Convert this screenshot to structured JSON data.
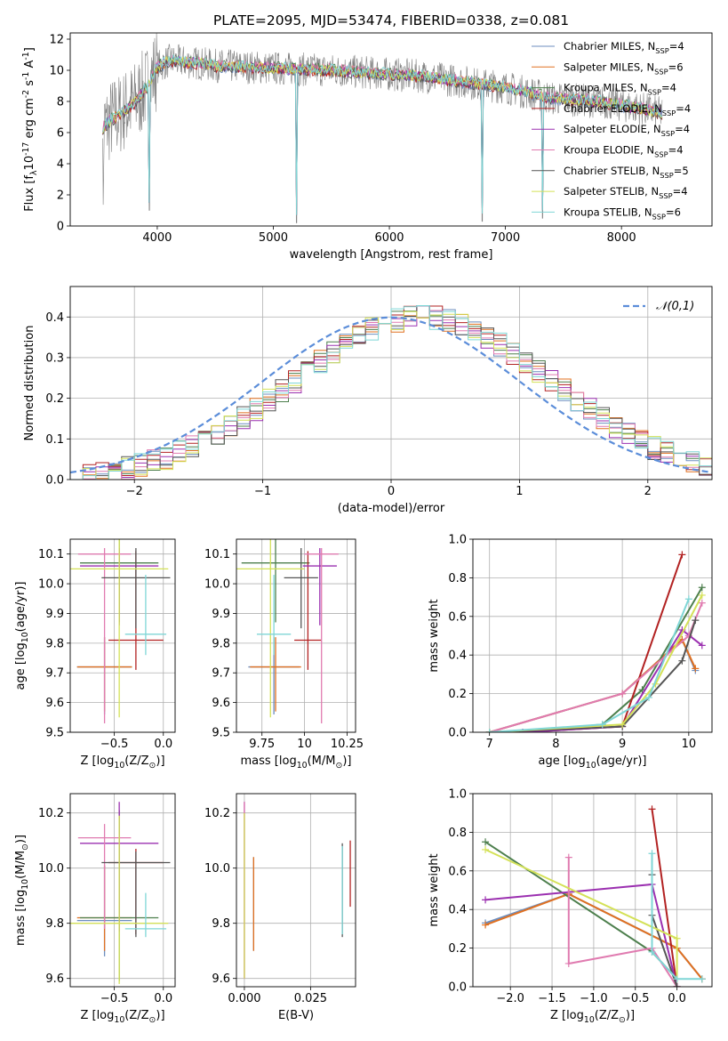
{
  "figure": {
    "background": "#ffffff",
    "axis_color": "#000000",
    "grid_color": "#b0b0b0"
  },
  "legend_series": [
    {
      "label": "Chabrier MILES, N$_{SSP}$=4",
      "color": "#6c8ebf"
    },
    {
      "label": "Salpeter MILES, N$_{SSP}$=6",
      "color": "#e07020"
    },
    {
      "label": "Kroupa MILES, N$_{SSP}$=4",
      "color": "#4d7f4d"
    },
    {
      "label": "Chabrier ELODIE, N$_{SSP}$=4",
      "color": "#b22222"
    },
    {
      "label": "Salpeter ELODIE, N$_{SSP}$=4",
      "color": "#9b30b0"
    },
    {
      "label": "Kroupa ELODIE, N$_{SSP}$=4",
      "color": "#e07bb0"
    },
    {
      "label": "Chabrier STELIB, N$_{SSP}$=5",
      "color": "#555555"
    },
    {
      "label": "Salpeter STELIB, N$_{SSP}$=4",
      "color": "#d4e157"
    },
    {
      "label": "Kroupa STELIB, N$_{SSP}$=6",
      "color": "#7fd6d6"
    }
  ],
  "chart_data": [
    {
      "id": "spectrum",
      "type": "line",
      "title": "PLATE=2095, MJD=53474, FIBERID=0338, z=0.081",
      "xlabel": "wavelength [Angstrom, rest frame]",
      "ylabel": "Flux [f$_\\lambda$10$^{-17}$ erg cm$^{-2}$ s$^{-1}$ A$^{-1}$]",
      "xlim": [
        3250,
        8780
      ],
      "ylim": [
        0,
        12.4
      ],
      "xticks": [
        4000,
        5000,
        6000,
        7000,
        8000
      ],
      "yticks": [
        0,
        2,
        4,
        6,
        8,
        10,
        12
      ],
      "legend_labels": [
        "Chabrier MILES, N$_{SSP}$=4",
        "Salpeter MILES, N$_{SSP}$=6",
        "Kroupa MILES, N$_{SSP}$=4",
        "Chabrier ELODIE, N$_{SSP}$=4",
        "Salpeter ELODIE, N$_{SSP}$=4",
        "Kroupa ELODIE, N$_{SSP}$=4",
        "Chabrier STELIB, N$_{SSP}$=5",
        "Salpeter STELIB, N$_{SSP}$=4",
        "Kroupa STELIB, N$_{SSP}$=6"
      ],
      "data_color": "#808080",
      "continuum": {
        "x": [
          3530,
          3600,
          3700,
          3800,
          3900,
          4000,
          4100,
          4300,
          4500,
          4800,
          5100,
          5500,
          5900,
          6300,
          6600,
          7000,
          7400,
          7800,
          8200,
          8350
        ],
        "y": [
          6.3,
          6.8,
          7.3,
          7.9,
          8.8,
          10.2,
          10.6,
          10.5,
          10.3,
          10.2,
          10.1,
          10.0,
          9.8,
          9.6,
          9.3,
          8.9,
          8.2,
          8.0,
          7.5,
          7.2
        ]
      },
      "dips": [
        {
          "x": 3933,
          "y": 1.0
        },
        {
          "x": 5200,
          "y": 0.2
        },
        {
          "x": 6800,
          "y": 0.3
        },
        {
          "x": 7320,
          "y": 0.5
        }
      ],
      "grid": false,
      "legend": "upper-right"
    },
    {
      "id": "residuals",
      "type": "histogram",
      "xlabel": "(data-model)/error",
      "ylabel": "Normed distribution",
      "xlim": [
        -2.5,
        2.5
      ],
      "ylim": [
        0,
        0.475
      ],
      "xticks": [
        -2,
        -1,
        0,
        1,
        2
      ],
      "yticks": [
        0.0,
        0.1,
        0.2,
        0.3,
        0.4
      ],
      "reference_curve": {
        "label": "$\\mathcal{N}(0,1)$",
        "color": "#5b8dd9",
        "style": "dashed"
      },
      "bin_width": 0.1,
      "shape": "gaussian with mode near 0.25",
      "grid": true,
      "legend": "upper-right"
    },
    {
      "id": "age-vs-Z",
      "type": "errorbar",
      "xlabel": "Z [log$_{10}$(Z/Z$_\\odot$)]",
      "ylabel": "age  [log$_{10}$(age/yr)]",
      "xlim": [
        -0.95,
        0.12
      ],
      "ylim": [
        9.5,
        10.15
      ],
      "xticks": [
        -0.5,
        0.0
      ],
      "xtick_labels": [
        "−0.5",
        "0.0"
      ],
      "yticks": [
        9.5,
        9.6,
        9.7,
        9.8,
        9.9,
        10.0,
        10.1
      ],
      "points": [
        {
          "x": -0.6,
          "y": 9.72,
          "xerr": 0.28,
          "yerr": [
            0.16,
            0.1
          ],
          "color": "#6c8ebf"
        },
        {
          "x": -0.6,
          "y": 9.72,
          "xerr": 0.28,
          "yerr": [
            0.15,
            0.1
          ],
          "color": "#e07020"
        },
        {
          "x": -0.45,
          "y": 10.07,
          "xerr": 0.4,
          "yerr": [
            0.2,
            0.09
          ],
          "color": "#4d7f4d"
        },
        {
          "x": -0.28,
          "y": 9.81,
          "xerr": 0.28,
          "yerr": [
            0.1,
            0.3
          ],
          "color": "#b22222"
        },
        {
          "x": -0.45,
          "y": 10.06,
          "xerr": 0.4,
          "yerr": [
            0.2,
            0.06
          ],
          "color": "#9b30b0"
        },
        {
          "x": -0.6,
          "y": 10.1,
          "xerr": 0.27,
          "yerr": [
            0.57,
            0.02
          ],
          "color": "#e07bb0"
        },
        {
          "x": -0.28,
          "y": 10.02,
          "xerr": 0.35,
          "yerr": [
            0.17,
            0.1
          ],
          "color": "#555555"
        },
        {
          "x": -0.45,
          "y": 10.05,
          "xerr": 0.5,
          "yerr": [
            0.5,
            0.11
          ],
          "color": "#d4e157"
        },
        {
          "x": -0.18,
          "y": 9.83,
          "xerr": 0.21,
          "yerr": [
            0.07,
            0.2
          ],
          "color": "#7fd6d6"
        }
      ],
      "grid": true
    },
    {
      "id": "age-vs-mass",
      "type": "errorbar",
      "xlabel": "mass [log$_{10}$(M/M$_\\odot$)]",
      "xlim": [
        9.6,
        10.3
      ],
      "ylim": [
        9.5,
        10.15
      ],
      "xticks": [
        9.75,
        10.0,
        10.25
      ],
      "yticks": [
        9.5,
        9.6,
        9.7,
        9.8,
        9.9,
        10.0,
        10.1
      ],
      "points": [
        {
          "x": 9.82,
          "y": 9.72,
          "xerr": 0.15,
          "yerr": [
            0.16,
            0.1
          ],
          "color": "#6c8ebf"
        },
        {
          "x": 9.83,
          "y": 9.72,
          "xerr": 0.15,
          "yerr": [
            0.15,
            0.1
          ],
          "color": "#e07020"
        },
        {
          "x": 9.83,
          "y": 10.07,
          "xerr": 0.2,
          "yerr": [
            0.2,
            0.09
          ],
          "color": "#4d7f4d"
        },
        {
          "x": 10.02,
          "y": 9.81,
          "xerr": 0.08,
          "yerr": [
            0.1,
            0.3
          ],
          "color": "#b22222"
        },
        {
          "x": 10.09,
          "y": 10.06,
          "xerr": 0.1,
          "yerr": [
            0.2,
            0.06
          ],
          "color": "#9b30b0"
        },
        {
          "x": 10.1,
          "y": 10.1,
          "xerr": 0.1,
          "yerr": [
            0.57,
            0.02
          ],
          "color": "#e07bb0"
        },
        {
          "x": 9.98,
          "y": 10.02,
          "xerr": 0.1,
          "yerr": [
            0.17,
            0.1
          ],
          "color": "#555555"
        },
        {
          "x": 9.8,
          "y": 10.05,
          "xerr": 0.2,
          "yerr": [
            0.5,
            0.11
          ],
          "color": "#d4e157"
        },
        {
          "x": 9.82,
          "y": 9.83,
          "xerr": 0.1,
          "yerr": [
            0.07,
            0.2
          ],
          "color": "#7fd6d6"
        }
      ],
      "grid": true
    },
    {
      "id": "mass-weight-vs-age",
      "type": "line",
      "xlabel": "age  [log$_{10}$(age/yr)]",
      "ylabel": "mass weight",
      "xlim": [
        6.75,
        10.35
      ],
      "ylim": [
        0,
        1.0
      ],
      "xticks": [
        7,
        8,
        9,
        10
      ],
      "yticks": [
        0.0,
        0.2,
        0.4,
        0.6,
        0.8,
        1.0
      ],
      "series": [
        {
          "color": "#6c8ebf",
          "x": [
            7.0,
            9.0,
            9.9,
            10.1
          ],
          "y": [
            0.0,
            0.2,
            0.48,
            0.32
          ]
        },
        {
          "color": "#e07020",
          "x": [
            7.0,
            9.0,
            9.9,
            10.1
          ],
          "y": [
            0.0,
            0.2,
            0.48,
            0.33
          ]
        },
        {
          "color": "#4d7f4d",
          "x": [
            7.5,
            8.7,
            9.3,
            10.2
          ],
          "y": [
            0.0,
            0.04,
            0.22,
            0.75
          ]
        },
        {
          "color": "#b22222",
          "x": [
            7.5,
            9.0,
            9.9
          ],
          "y": [
            0.0,
            0.03,
            0.92
          ]
        },
        {
          "color": "#9b30b0",
          "x": [
            7.5,
            9.0,
            9.9,
            10.2
          ],
          "y": [
            0.0,
            0.03,
            0.53,
            0.45
          ]
        },
        {
          "color": "#e07bb0",
          "x": [
            7.0,
            9.0,
            10.0,
            10.2
          ],
          "y": [
            0.0,
            0.2,
            0.5,
            0.67
          ]
        },
        {
          "color": "#555555",
          "x": [
            7.0,
            9.0,
            9.9,
            10.1
          ],
          "y": [
            0.0,
            0.03,
            0.37,
            0.58
          ]
        },
        {
          "color": "#d4e157",
          "x": [
            7.0,
            9.0,
            9.5,
            10.2
          ],
          "y": [
            0.0,
            0.04,
            0.25,
            0.71
          ]
        },
        {
          "color": "#7fd6d6",
          "x": [
            7.0,
            8.7,
            9.4,
            10.0
          ],
          "y": [
            0.0,
            0.04,
            0.18,
            0.69
          ]
        }
      ],
      "grid": true
    },
    {
      "id": "mass-vs-Z",
      "type": "errorbar",
      "xlabel": "Z [log$_{10}$(Z/Z$_\\odot$)]",
      "ylabel": "mass [log$_{10}$(M/M$_\\odot$)]",
      "xlim": [
        -0.95,
        0.12
      ],
      "ylim": [
        9.57,
        10.27
      ],
      "xticks": [
        -0.5,
        0.0
      ],
      "xtick_labels": [
        "−0.5",
        "0.0"
      ],
      "yticks": [
        9.6,
        9.8,
        10.0,
        10.2
      ],
      "points": [
        {
          "x": -0.6,
          "y": 9.81,
          "xerr": 0.28,
          "yerr": [
            0.13,
            0.2
          ],
          "color": "#6c8ebf"
        },
        {
          "x": -0.6,
          "y": 9.82,
          "xerr": 0.28,
          "yerr": [
            0.12,
            0.19
          ],
          "color": "#e07020"
        },
        {
          "x": -0.45,
          "y": 9.82,
          "xerr": 0.4,
          "yerr": [
            0.23,
            0.39
          ],
          "color": "#4d7f4d"
        },
        {
          "x": -0.28,
          "y": 10.02,
          "xerr": 0.28,
          "yerr": [
            0.26,
            0.05
          ],
          "color": "#b22222"
        },
        {
          "x": -0.45,
          "y": 10.09,
          "xerr": 0.4,
          "yerr": [
            0.32,
            0.15
          ],
          "color": "#9b30b0"
        },
        {
          "x": -0.6,
          "y": 10.11,
          "xerr": 0.27,
          "yerr": [
            0.33,
            0.05
          ],
          "color": "#e07bb0"
        },
        {
          "x": -0.28,
          "y": 10.02,
          "xerr": 0.35,
          "yerr": [
            0.27,
            0.04
          ],
          "color": "#555555"
        },
        {
          "x": -0.45,
          "y": 9.8,
          "xerr": 0.5,
          "yerr": [
            0.22,
            0.39
          ],
          "color": "#d4e157"
        },
        {
          "x": -0.18,
          "y": 9.78,
          "xerr": 0.21,
          "yerr": [
            0.03,
            0.13
          ],
          "color": "#7fd6d6"
        }
      ],
      "grid": true
    },
    {
      "id": "mass-vs-ebv",
      "type": "errorbar",
      "xlabel": "E(B-V)",
      "xlim": [
        -0.003,
        0.042
      ],
      "ylim": [
        9.57,
        10.27
      ],
      "xticks": [
        0.0,
        0.025
      ],
      "xtick_labels": [
        "0.000",
        "0.025"
      ],
      "yticks": [
        9.6,
        9.8,
        10.0,
        10.2
      ],
      "points": [
        {
          "x": 0.0,
          "y": 10.0,
          "yerr": [
            0.4,
            0.24
          ],
          "color": "#9b30b0"
        },
        {
          "x": 0.0,
          "y": 10.0,
          "yerr": [
            0.4,
            0.24
          ],
          "color": "#e07bb0"
        },
        {
          "x": 0.0,
          "y": 9.9,
          "yerr": [
            0.3,
            0.3
          ],
          "color": "#d4e157"
        },
        {
          "x": 0.0035,
          "y": 9.87,
          "yerr": [
            0.17,
            0.17
          ],
          "color": "#6c8ebf"
        },
        {
          "x": 0.0035,
          "y": 9.87,
          "yerr": [
            0.17,
            0.17
          ],
          "color": "#e07020"
        },
        {
          "x": 0.037,
          "y": 9.92,
          "yerr": [
            0.17,
            0.17
          ],
          "color": "#555555"
        },
        {
          "x": 0.037,
          "y": 9.92,
          "yerr": [
            0.16,
            0.16
          ],
          "color": "#7fd6d6"
        },
        {
          "x": 0.04,
          "y": 9.98,
          "yerr": [
            0.12,
            0.12
          ],
          "color": "#b22222"
        }
      ],
      "grid": true
    },
    {
      "id": "mass-weight-vs-Z",
      "type": "line",
      "xlabel": "Z [log$_{10}$(Z/Z$_\\odot$)]",
      "ylabel": "mass weight",
      "xlim": [
        -2.45,
        0.42
      ],
      "ylim": [
        0,
        1.0
      ],
      "xticks": [
        -2.0,
        -1.5,
        -1.0,
        -0.5,
        0.0
      ],
      "xtick_labels": [
        "−2.0",
        "−1.5",
        "−1.0",
        "−0.5",
        "0.0"
      ],
      "yticks": [
        0.0,
        0.2,
        0.4,
        0.6,
        0.8,
        1.0
      ],
      "series": [
        {
          "color": "#6c8ebf",
          "x": [
            -2.3,
            -1.3,
            0.0,
            0.3
          ],
          "y": [
            0.33,
            0.48,
            0.2,
            0.04
          ]
        },
        {
          "color": "#e07020",
          "x": [
            -2.3,
            -1.3,
            0.0,
            0.3
          ],
          "y": [
            0.32,
            0.48,
            0.2,
            0.04
          ]
        },
        {
          "color": "#4d7f4d",
          "x": [
            -2.3,
            -0.3,
            0.0
          ],
          "y": [
            0.75,
            0.18,
            0.04
          ]
        },
        {
          "color": "#b22222",
          "x": [
            -0.3,
            0.0
          ],
          "y": [
            0.92,
            0.0
          ]
        },
        {
          "color": "#9b30b0",
          "x": [
            -2.3,
            -0.3,
            0.0
          ],
          "y": [
            0.45,
            0.53,
            0.0
          ]
        },
        {
          "color": "#e07bb0",
          "x": [
            -1.3,
            -1.3,
            -0.3,
            0.0
          ],
          "y": [
            0.67,
            0.12,
            0.2,
            0.0
          ]
        },
        {
          "color": "#555555",
          "x": [
            -0.3,
            -0.3,
            0.0
          ],
          "y": [
            0.58,
            0.37,
            0.0
          ]
        },
        {
          "color": "#d4e157",
          "x": [
            -2.3,
            0.0,
            0.0
          ],
          "y": [
            0.71,
            0.25,
            0.04
          ]
        },
        {
          "color": "#7fd6d6",
          "x": [
            -0.3,
            -0.3,
            0.0,
            0.3
          ],
          "y": [
            0.69,
            0.18,
            0.04,
            0.04
          ]
        }
      ],
      "grid": true
    }
  ]
}
